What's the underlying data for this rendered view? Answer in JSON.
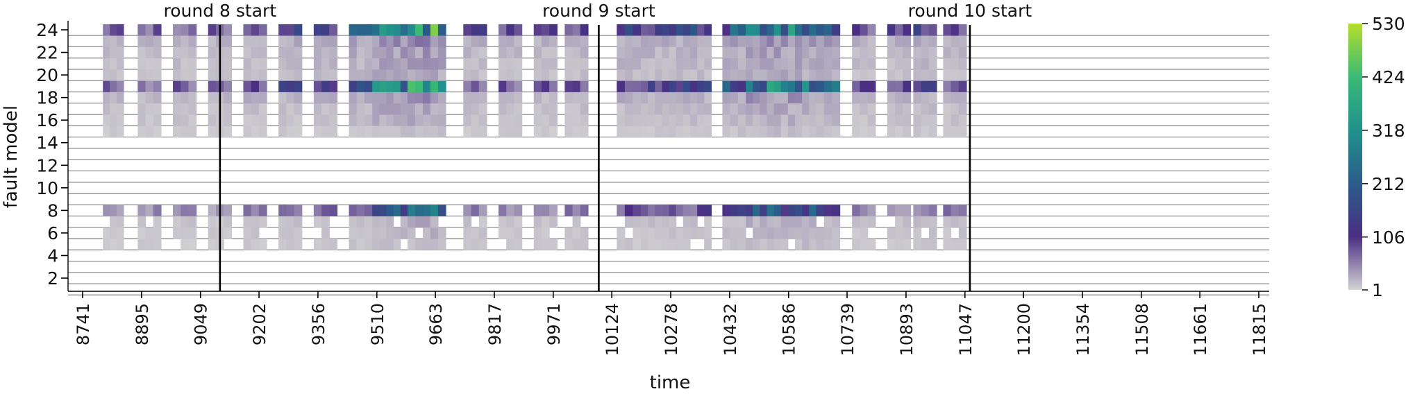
{
  "chart_data": {
    "type": "heatmap",
    "title": "",
    "xlabel": "time",
    "ylabel": "fault model",
    "x_range": [
      8700,
      11840
    ],
    "y_range": [
      0.5,
      25
    ],
    "x_ticks": [
      "8741",
      "8895",
      "9049",
      "9202",
      "9356",
      "9510",
      "9663",
      "9817",
      "9971",
      "10124",
      "10278",
      "10432",
      "10586",
      "10739",
      "10893",
      "11047",
      "11200",
      "11354",
      "11508",
      "11661",
      "11815"
    ],
    "y_ticks": [
      "2",
      "4",
      "6",
      "8",
      "10",
      "12",
      "14",
      "16",
      "18",
      "20",
      "22",
      "24"
    ],
    "colorbar": {
      "min": 1,
      "max": 530,
      "ticks": [
        "1",
        "106",
        "212",
        "318",
        "424",
        "530"
      ],
      "colormap": [
        "#d3d3d3",
        "#4b2e83",
        "#2b5c8a",
        "#21918c",
        "#3aba76",
        "#b5de2b"
      ]
    },
    "round_markers": [
      {
        "label": "round 8 start",
        "x": 9100
      },
      {
        "label": "round 9 start",
        "x": 10090
      },
      {
        "label": "round 10 start",
        "x": 11060
      }
    ],
    "rows": [
      1,
      2,
      3,
      4,
      5,
      6,
      7,
      8,
      9,
      10,
      11,
      12,
      13,
      14,
      15,
      16,
      17,
      18,
      19,
      20,
      21,
      22,
      23,
      24
    ],
    "active_rows": [
      5,
      6,
      7,
      8,
      15,
      16,
      17,
      18,
      19,
      20,
      21,
      22,
      23,
      24
    ],
    "row_base_values": {
      "5": 8,
      "6": 10,
      "7": 12,
      "8": 70,
      "15": 8,
      "16": 12,
      "17": 14,
      "18": 20,
      "19": 110,
      "20": 14,
      "21": 16,
      "22": 18,
      "23": 22,
      "24": 120
    },
    "blocks": [
      {
        "start": 8794,
        "end": 8848,
        "intensity": 0.6
      },
      {
        "start": 8885,
        "end": 8946,
        "intensity": 0.6
      },
      {
        "start": 8977,
        "end": 9038,
        "intensity": 0.6
      },
      {
        "start": 9069,
        "end": 9130,
        "intensity": 0.6
      },
      {
        "start": 9161,
        "end": 9222,
        "intensity": 0.9
      },
      {
        "start": 9253,
        "end": 9314,
        "intensity": 1.0
      },
      {
        "start": 9345,
        "end": 9406,
        "intensity": 1.1
      },
      {
        "start": 9437,
        "end": 9498,
        "intensity": 1.5
      },
      {
        "start": 9498,
        "end": 9590,
        "intensity": 2.6
      },
      {
        "start": 9590,
        "end": 9690,
        "intensity": 3.0
      },
      {
        "start": 9736,
        "end": 9797,
        "intensity": 0.8
      },
      {
        "start": 9828,
        "end": 9889,
        "intensity": 0.7
      },
      {
        "start": 9920,
        "end": 9981,
        "intensity": 0.7
      },
      {
        "start": 10001,
        "end": 10062,
        "intensity": 0.8
      },
      {
        "start": 10137,
        "end": 10200,
        "intensity": 1.1
      },
      {
        "start": 10200,
        "end": 10292,
        "intensity": 1.0
      },
      {
        "start": 10292,
        "end": 10384,
        "intensity": 1.2
      },
      {
        "start": 10413,
        "end": 10474,
        "intensity": 1.6
      },
      {
        "start": 10474,
        "end": 10566,
        "intensity": 2.7
      },
      {
        "start": 10566,
        "end": 10658,
        "intensity": 2.5
      },
      {
        "start": 10658,
        "end": 10720,
        "intensity": 1.8
      },
      {
        "start": 10752,
        "end": 10813,
        "intensity": 0.7
      },
      {
        "start": 10844,
        "end": 10905,
        "intensity": 0.8
      },
      {
        "start": 10912,
        "end": 10973,
        "intensity": 1.0
      },
      {
        "start": 10990,
        "end": 11051,
        "intensity": 0.8
      }
    ]
  }
}
